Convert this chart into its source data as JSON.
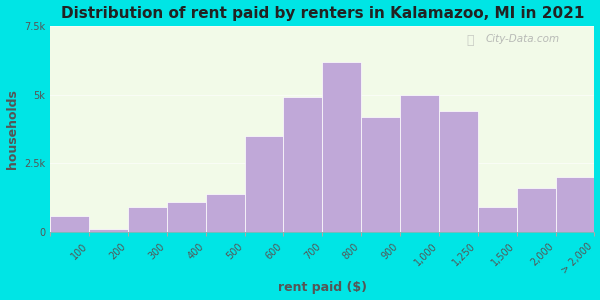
{
  "title": "Distribution of rent paid by renters in Kalamazoo, MI in 2021",
  "xlabel": "rent paid ($)",
  "ylabel": "households",
  "background_outer": "#00e5e5",
  "background_inner": "#f2fae8",
  "bar_color": "#c0a8d8",
  "bar_edge_color": "#ffffff",
  "bin_edges": [
    0,
    100,
    200,
    300,
    400,
    500,
    600,
    700,
    800,
    900,
    1000,
    1250,
    1500,
    2000,
    2500
  ],
  "bin_labels": [
    "100",
    "200",
    "300",
    "400",
    "500",
    "600",
    "700",
    "800",
    "900",
    "1,000",
    "1,250",
    "1,500",
    "2,000",
    "> 2,000"
  ],
  "values": [
    600,
    100,
    900,
    1100,
    1400,
    3500,
    4900,
    6200,
    4200,
    5000,
    4400,
    900,
    1600,
    2000
  ],
  "ylim": [
    0,
    7500
  ],
  "yticks": [
    0,
    2500,
    5000,
    7500
  ],
  "ytick_labels": [
    "0",
    "2.5k",
    "5k",
    "7.5k"
  ],
  "watermark": "City-Data.com",
  "title_fontsize": 11,
  "axis_fontsize": 9,
  "tick_fontsize": 7
}
